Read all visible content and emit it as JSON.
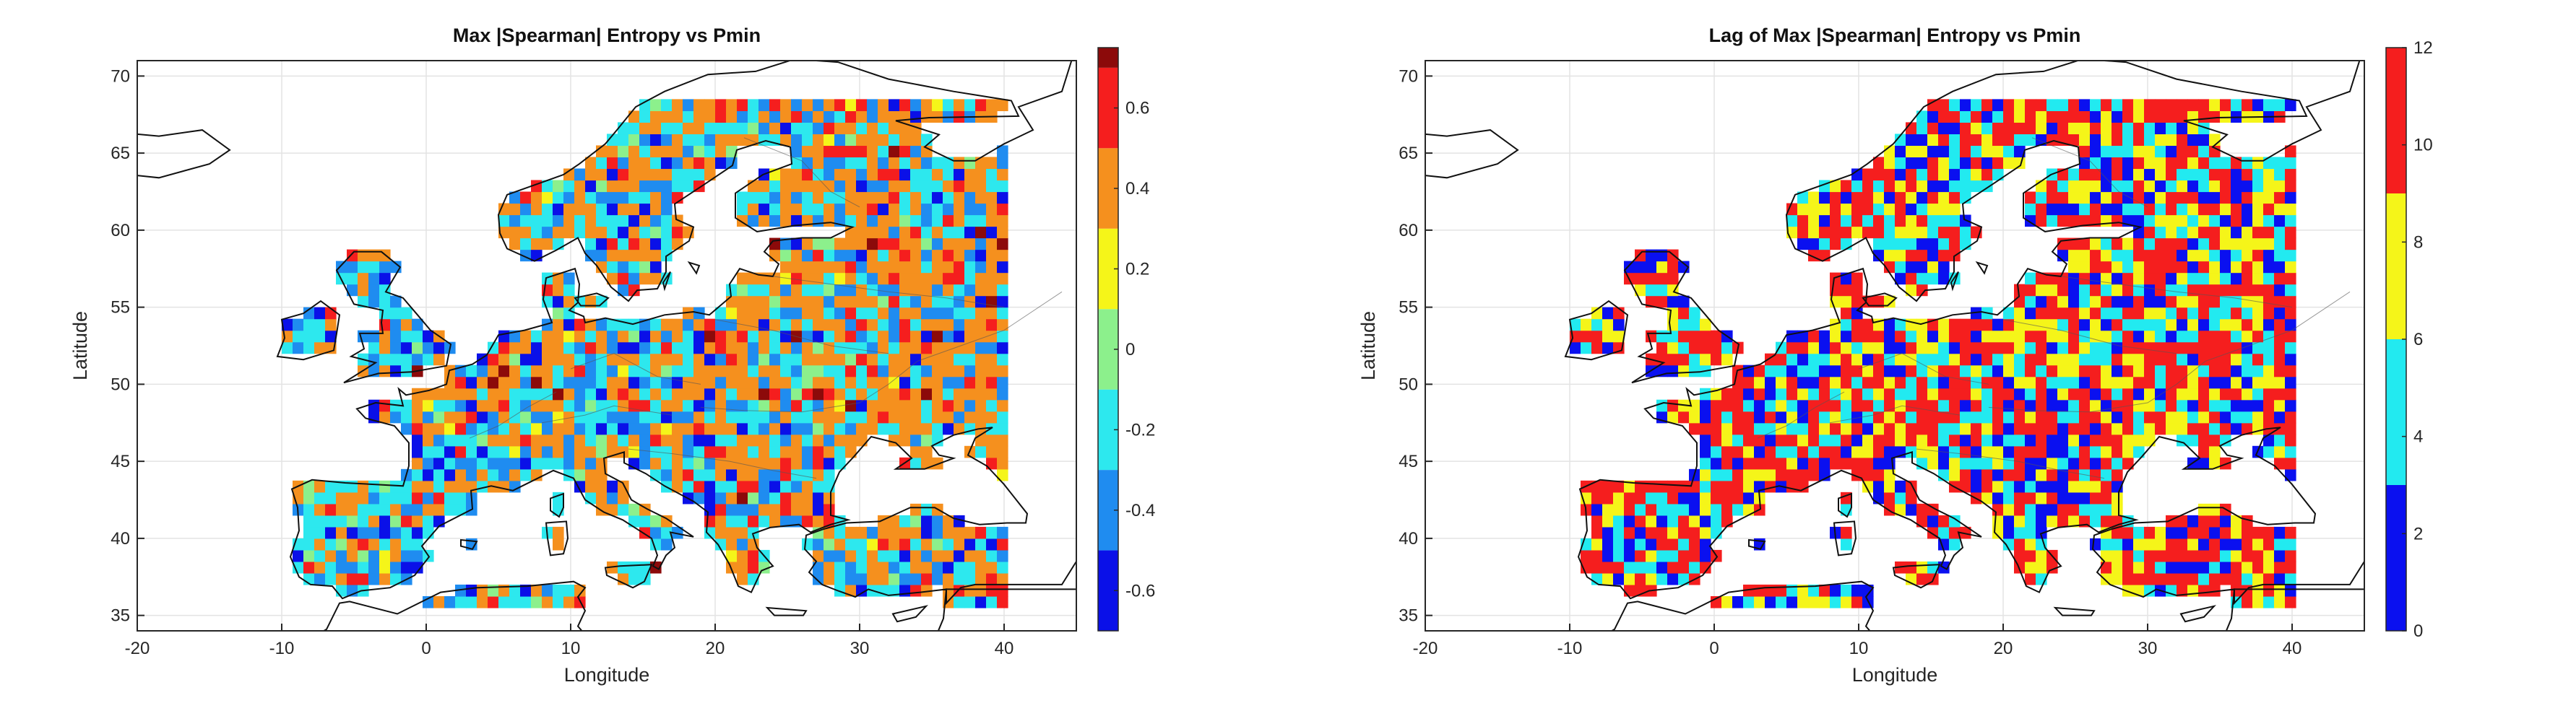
{
  "left_map": {
    "title": "Max |Spearman| Entropy vs Pmin",
    "xlabel": "Longitude",
    "ylabel": "Latitude",
    "xlim": [
      -20,
      45
    ],
    "ylim": [
      34,
      71
    ],
    "xticks": [
      "-20",
      "-10",
      "0",
      "10",
      "20",
      "30",
      "40"
    ],
    "yticks": [
      "35",
      "40",
      "45",
      "50",
      "55",
      "60",
      "65",
      "70"
    ],
    "grid": true,
    "colorbar": {
      "range": [
        -0.7,
        0.75
      ],
      "ticks": [
        "-0.6",
        "-0.4",
        "-0.2",
        "0",
        "0.2",
        "0.4",
        "0.6"
      ],
      "tick_values": [
        -0.6,
        -0.4,
        -0.2,
        0,
        0.2,
        0.4,
        0.6
      ],
      "bins": [
        {
          "from": -0.7,
          "to": -0.5,
          "color": "#0a10e8"
        },
        {
          "from": -0.5,
          "to": -0.3,
          "color": "#1f8cf0"
        },
        {
          "from": -0.3,
          "to": -0.1,
          "color": "#2de8ee"
        },
        {
          "from": -0.1,
          "to": 0.1,
          "color": "#8cf08c"
        },
        {
          "from": 0.1,
          "to": 0.3,
          "color": "#f5f519"
        },
        {
          "from": 0.3,
          "to": 0.5,
          "color": "#f5901e"
        },
        {
          "from": 0.5,
          "to": 0.7,
          "color": "#f51e1e"
        },
        {
          "from": 0.7,
          "to": 0.75,
          "color": "#8c0a0a"
        }
      ]
    }
  },
  "right_map": {
    "title": "Lag of Max |Spearman| Entropy vs Pmin",
    "xlabel": "Longitude",
    "ylabel": "Latitude",
    "xlim": [
      -20,
      45
    ],
    "ylim": [
      34,
      71
    ],
    "xticks": [
      "-20",
      "-10",
      "0",
      "10",
      "20",
      "30",
      "40"
    ],
    "yticks": [
      "35",
      "40",
      "45",
      "50",
      "55",
      "60",
      "65",
      "70"
    ],
    "grid": true,
    "colorbar": {
      "range": [
        0,
        12
      ],
      "ticks": [
        "0",
        "2",
        "4",
        "6",
        "8",
        "10",
        "12"
      ],
      "tick_values": [
        0,
        2,
        4,
        6,
        8,
        10,
        12
      ],
      "bins": [
        {
          "from": 0,
          "to": 3,
          "color": "#0a10f0"
        },
        {
          "from": 3,
          "to": 6,
          "color": "#22eaf0"
        },
        {
          "from": 6,
          "to": 9,
          "color": "#f5f519"
        },
        {
          "from": 9,
          "to": 12,
          "color": "#f51e1e"
        }
      ]
    }
  }
}
